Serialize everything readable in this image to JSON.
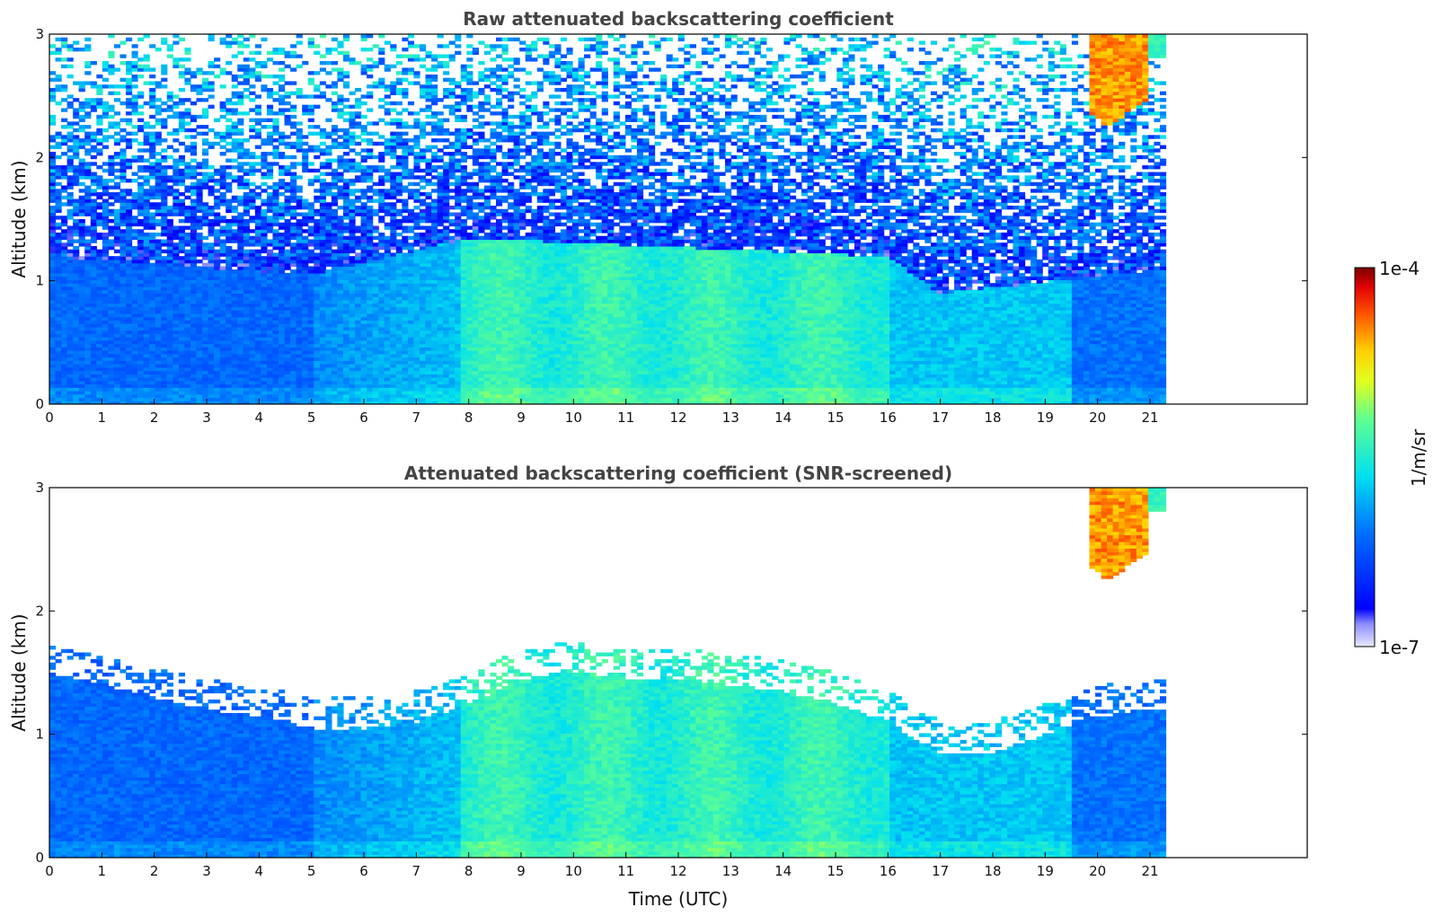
{
  "chart_data": [
    {
      "type": "heatmap",
      "title": "Raw attenuated backscattering coefficient",
      "xlabel": "",
      "ylabel": "Altitude (km)",
      "xlim": [
        0,
        24
      ],
      "ylim": [
        0,
        3
      ],
      "xticks": [
        0,
        1,
        2,
        3,
        4,
        5,
        6,
        7,
        8,
        9,
        10,
        11,
        12,
        13,
        14,
        15,
        16,
        17,
        18,
        19,
        20,
        21
      ],
      "yticks": [
        0,
        1,
        2,
        3
      ],
      "data_end_hour": 21.3,
      "screened": false,
      "colorbar_log_range": [
        -7,
        -4
      ],
      "regions": [
        {
          "t": [
            0,
            8
          ],
          "z": [
            0,
            0.4
          ],
          "log_beta": -5.9
        },
        {
          "t": [
            0,
            8
          ],
          "z": [
            0.4,
            1.1
          ],
          "log_beta": -6.1
        },
        {
          "t": [
            8,
            16
          ],
          "z": [
            0,
            1.4
          ],
          "log_beta": -5.4
        },
        {
          "t": [
            16,
            21.3
          ],
          "z": [
            0,
            1.0
          ],
          "log_beta": -5.8
        },
        {
          "t": [
            0,
            21.3
          ],
          "z": [
            1.1,
            3.0
          ],
          "log_beta": "noise"
        },
        {
          "t": [
            19.8,
            21.3
          ],
          "z": [
            2.2,
            3.0
          ],
          "log_beta": -4.3
        }
      ]
    },
    {
      "type": "heatmap",
      "title": "Attenuated backscattering coefficient (SNR-screened)",
      "xlabel": "Time (UTC)",
      "ylabel": "Altitude (km)",
      "xlim": [
        0,
        24
      ],
      "ylim": [
        0,
        3
      ],
      "xticks": [
        0,
        1,
        2,
        3,
        4,
        5,
        6,
        7,
        8,
        9,
        10,
        11,
        12,
        13,
        14,
        15,
        16,
        17,
        18,
        19,
        20,
        21
      ],
      "yticks": [
        0,
        1,
        2,
        3
      ],
      "data_end_hour": 21.3,
      "screened": true,
      "colorbar_log_range": [
        -7,
        -4
      ],
      "boundary_layer_top_km": [
        [
          0,
          1.5
        ],
        [
          1,
          1.4
        ],
        [
          2,
          1.3
        ],
        [
          3,
          1.2
        ],
        [
          4,
          1.15
        ],
        [
          5,
          1.05
        ],
        [
          6,
          1.05
        ],
        [
          7,
          1.1
        ],
        [
          8,
          1.25
        ],
        [
          9,
          1.45
        ],
        [
          10,
          1.5
        ],
        [
          11,
          1.45
        ],
        [
          12,
          1.45
        ],
        [
          13,
          1.4
        ],
        [
          14,
          1.35
        ],
        [
          15,
          1.25
        ],
        [
          16,
          1.1
        ],
        [
          17,
          0.85
        ],
        [
          18,
          0.85
        ],
        [
          19,
          1.0
        ],
        [
          20,
          1.15
        ],
        [
          21.3,
          1.2
        ]
      ]
    }
  ],
  "colorbar": {
    "label": "1/m/sr",
    "max_label": "1e-4",
    "min_label": "1e-7"
  }
}
